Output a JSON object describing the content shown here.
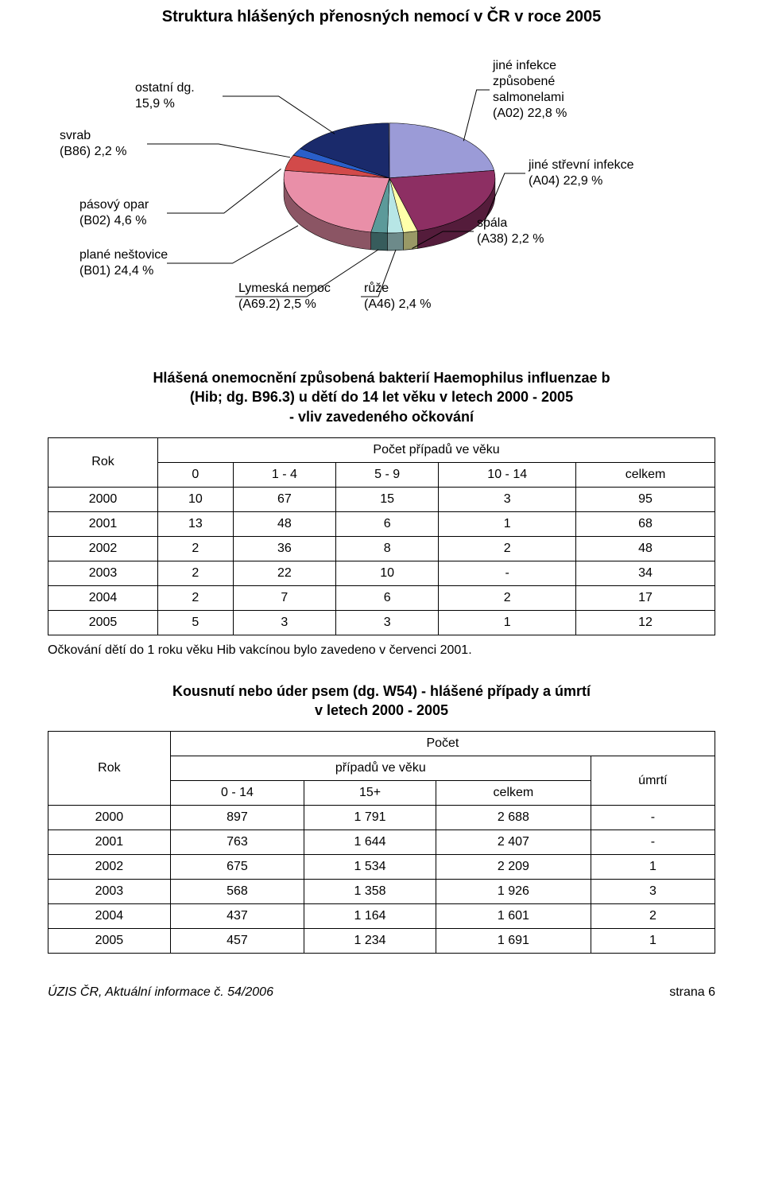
{
  "pie": {
    "title": "Struktura hlášených přenosných nemocí v ČR v roce 2005",
    "background": "#ffffff",
    "slices": [
      {
        "key": "salmonely",
        "label": "jiné infekce\nzpůsobené\nsalmonelami\n(A02) 22,8 %",
        "value": 22.8,
        "color": "#9b9bd7"
      },
      {
        "key": "strevni",
        "label": "jiné střevní infekce\n(A04) 22,9 %",
        "value": 22.9,
        "color": "#8d2f63"
      },
      {
        "key": "spala",
        "label": "spála\n(A38) 2,2 %",
        "value": 2.2,
        "color": "#ffffaa"
      },
      {
        "key": "ruze",
        "label": "růže\n(A46) 2,4 %",
        "value": 2.4,
        "color": "#b7e6e6"
      },
      {
        "key": "lymeska",
        "label": "Lymeská nemoc\n(A69.2) 2,5 %",
        "value": 2.5,
        "color": "#5c9a9a"
      },
      {
        "key": "nestovice",
        "label": "plané neštovice\n(B01) 24,4 %",
        "value": 24.4,
        "color": "#e98fa8"
      },
      {
        "key": "pasovyopar",
        "label": "pásový opar\n(B02) 4,6 %",
        "value": 4.6,
        "color": "#d24a4a"
      },
      {
        "key": "svrab",
        "label": "svrab\n(B86) 2,2 %",
        "value": 2.2,
        "color": "#2a5fc9"
      },
      {
        "key": "ostatni",
        "label": "ostatní dg.\n15,9 %",
        "value": 15.9,
        "color": "#1a2a6b"
      }
    ],
    "tilt": 0.52,
    "depth": 24,
    "outline": "#000000",
    "start_angle_deg": -90
  },
  "table1": {
    "title": "Hlášená onemocnění způsobená bakterií Haemophilus influenzae b\n(Hib; dg. B96.3) u dětí do 14 let věku v letech 2000 - 2005\n- vliv zavedeného očkování",
    "rok_label": "Rok",
    "group_header": "Počet případů ve věku",
    "columns": [
      "0",
      "1 - 4",
      "5 - 9",
      "10 - 14",
      "celkem"
    ],
    "rows": [
      {
        "rok": "2000",
        "cells": [
          "10",
          "67",
          "15",
          "3",
          "95"
        ]
      },
      {
        "rok": "2001",
        "cells": [
          "13",
          "48",
          "6",
          "1",
          "68"
        ]
      },
      {
        "rok": "2002",
        "cells": [
          "2",
          "36",
          "8",
          "2",
          "48"
        ]
      },
      {
        "rok": "2003",
        "cells": [
          "2",
          "22",
          "10",
          "-",
          "34"
        ]
      },
      {
        "rok": "2004",
        "cells": [
          "2",
          "7",
          "6",
          "2",
          "17"
        ]
      },
      {
        "rok": "2005",
        "cells": [
          "5",
          "3",
          "3",
          "1",
          "12"
        ]
      }
    ],
    "note": "Očkování dětí do 1 roku věku Hib vakcínou bylo zavedeno v červenci 2001."
  },
  "table2": {
    "title": "Kousnutí nebo úder psem (dg. W54) - hlášené případy a úmrtí\nv letech 2000 - 2005",
    "rok_label": "Rok",
    "group_header_top": "Počet",
    "group_header_mid": "případů ve věku",
    "umrti_label": "úmrtí",
    "columns": [
      "0 - 14",
      "15+",
      "celkem"
    ],
    "rows": [
      {
        "rok": "2000",
        "cells": [
          "897",
          "1 791",
          "2 688"
        ],
        "umrti": "-"
      },
      {
        "rok": "2001",
        "cells": [
          "763",
          "1 644",
          "2 407"
        ],
        "umrti": "-"
      },
      {
        "rok": "2002",
        "cells": [
          "675",
          "1 534",
          "2 209"
        ],
        "umrti": "1"
      },
      {
        "rok": "2003",
        "cells": [
          "568",
          "1 358",
          "1 926"
        ],
        "umrti": "3"
      },
      {
        "rok": "2004",
        "cells": [
          "437",
          "1 164",
          "1 601"
        ],
        "umrti": "2"
      },
      {
        "rok": "2005",
        "cells": [
          "457",
          "1 234",
          "1 691"
        ],
        "umrti": "1"
      }
    ]
  },
  "footer": {
    "left": "ÚZIS ČR, Aktuální informace č. 54/2006",
    "right": "strana 6"
  }
}
